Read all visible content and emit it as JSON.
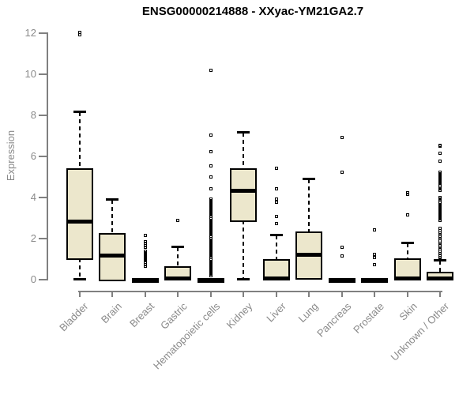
{
  "chart_data": {
    "type": "boxplot",
    "title": "ENSG00000214888 - XXyac-YM21GA2.7",
    "xlabel": "",
    "ylabel": "Expression",
    "ylim": [
      0,
      12
    ],
    "y_ticks": [
      0,
      2,
      4,
      6,
      8,
      10,
      12
    ],
    "grid": false,
    "legend": "none",
    "categories": [
      "Bladder",
      "Brain",
      "Breast",
      "Gastric",
      "Hematopoietic cells",
      "Kidney",
      "Liver",
      "Lung",
      "Pancreas",
      "Prostate",
      "Skin",
      "Unknown / Other"
    ],
    "boxes": [
      {
        "label": "Bladder",
        "whislo": 0,
        "q1": 1.0,
        "med": 2.8,
        "q3": 5.4,
        "whishi": 8.1,
        "outliers": [
          12,
          11.9
        ]
      },
      {
        "label": "Brain",
        "whislo": 0,
        "q1": 0,
        "med": 1.15,
        "q3": 2.25,
        "whishi": 3.85,
        "outliers": []
      },
      {
        "label": "Breast",
        "whislo": 0,
        "q1": 0,
        "med": 0,
        "q3": 0,
        "whishi": 0,
        "outliers": [
          2.1,
          1.8,
          1.72,
          1.6,
          1.52,
          1.35,
          1.27,
          1.19,
          1.11,
          1.03,
          0.95,
          0.87,
          0.79,
          0.71,
          0.63
        ]
      },
      {
        "label": "Gastric",
        "whislo": 0,
        "q1": 0,
        "med": 0.05,
        "q3": 0.6,
        "whishi": 1.55,
        "outliers": [
          2.85
        ]
      },
      {
        "label": "Hematopoietic cells",
        "whislo": 0,
        "q1": 0,
        "med": 0,
        "q3": 0,
        "whishi": 0,
        "outliers": [
          10.15,
          7.0,
          6.2,
          5.5,
          4.95,
          4.4,
          3.9,
          3.82,
          3.74,
          3.66,
          3.58,
          3.5,
          3.42,
          3.34,
          3.26,
          3.18,
          3.1,
          3.02,
          2.94,
          2.86,
          2.78,
          2.7,
          2.62,
          2.54,
          2.46,
          2.38,
          2.3,
          2.22,
          2.14,
          2.06,
          1.98,
          1.9,
          1.82,
          1.74,
          1.66,
          1.58,
          1.5,
          1.42,
          1.34,
          1.26,
          1.18,
          1.1,
          1.02,
          0.94,
          0.86,
          0.78,
          0.7,
          0.62,
          0.54,
          0.46,
          0.38,
          0.3,
          0.22,
          0.15
        ]
      },
      {
        "label": "Kidney",
        "whislo": 0,
        "q1": 2.85,
        "med": 4.3,
        "q3": 5.4,
        "whishi": 7.1,
        "outliers": []
      },
      {
        "label": "Liver",
        "whislo": 0,
        "q1": 0,
        "med": 0.05,
        "q3": 0.95,
        "whishi": 2.1,
        "outliers": [
          5.4,
          4.4,
          3.9,
          3.75,
          3.05,
          2.7
        ]
      },
      {
        "label": "Lung",
        "whislo": 0.05,
        "q1": 0.05,
        "med": 1.2,
        "q3": 2.3,
        "whishi": 4.85,
        "outliers": []
      },
      {
        "label": "Pancreas",
        "whislo": 0,
        "q1": 0,
        "med": 0,
        "q3": 0,
        "whishi": 0,
        "outliers": [
          6.9,
          5.2,
          1.55,
          1.1
        ]
      },
      {
        "label": "Prostate",
        "whislo": 0,
        "q1": 0,
        "med": 0,
        "q3": 0,
        "whishi": 0,
        "outliers": [
          2.4,
          1.2,
          1.05,
          0.7
        ]
      },
      {
        "label": "Skin",
        "whislo": 0,
        "q1": 0,
        "med": 0.05,
        "q3": 1.0,
        "whishi": 1.75,
        "outliers": [
          4.2,
          4.1,
          3.1
        ]
      },
      {
        "label": "Unknown / Other",
        "whislo": 0,
        "q1": 0,
        "med": 0.05,
        "q3": 0.35,
        "whishi": 0.9,
        "outliers": [
          6.5,
          6.45,
          6.1,
          5.75,
          5.2,
          5.12,
          5.04,
          4.96,
          4.88,
          4.8,
          4.72,
          4.64,
          4.56,
          4.48,
          4.4,
          4.32,
          3.95,
          3.87,
          3.79,
          3.71,
          3.63,
          3.55,
          3.47,
          3.39,
          3.31,
          3.23,
          3.15,
          3.07,
          2.99,
          2.91,
          2.83,
          2.45,
          2.35,
          2.25,
          2.15,
          2.05,
          1.95,
          1.85,
          1.75,
          1.65,
          1.55,
          1.45,
          1.35,
          1.25,
          1.15,
          1.05,
          0.95
        ]
      }
    ],
    "colors": {
      "box_fill": "#ECE7CC",
      "box_border": "#000000",
      "whisker": "#000000",
      "outlier": "#000000",
      "axis": "#808080",
      "tick_text": "#8a8a8a",
      "title_text": "#000000"
    }
  }
}
